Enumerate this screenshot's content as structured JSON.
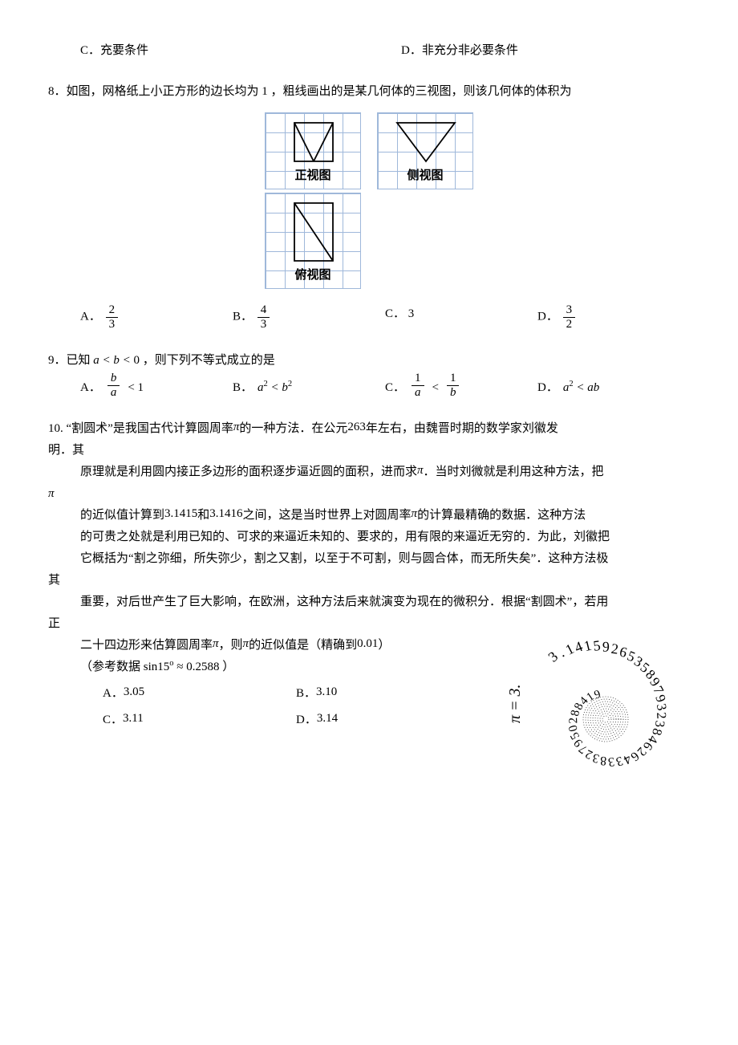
{
  "q7": {
    "options": {
      "c": {
        "label": "C．",
        "text": "充要条件"
      },
      "d": {
        "label": "D．",
        "text": "非充分非必要条件"
      }
    }
  },
  "q8": {
    "stem_prefix": "8．如图，网格纸上小正方形的边长均为",
    "stem_mid_num": "1",
    "stem_suffix": "，粗线画出的是某几何体的三视图，则该几何体的体积为",
    "views": {
      "front": "正视图",
      "side": "侧视图",
      "top": "俯视图"
    },
    "options": {
      "a": {
        "label": "A．",
        "num": "2",
        "den": "3"
      },
      "b": {
        "label": "B．",
        "num": "4",
        "den": "3"
      },
      "c": {
        "label": "C．",
        "text": "3"
      },
      "d": {
        "label": "D．",
        "num": "3",
        "den": "2"
      }
    },
    "grid": {
      "cell": 24,
      "line_color": "#9fb8da",
      "shape_color": "#000000"
    }
  },
  "q9": {
    "stem_prefix": "9．已知",
    "stem_math": "a < b < 0",
    "stem_suffix": "，则下列不等式成立的是",
    "options": {
      "a": {
        "label": "A．",
        "frac_num": "b",
        "frac_den": "a",
        "tail": "< 1"
      },
      "b": {
        "label": "B．",
        "math": "a² < b²"
      },
      "c": {
        "label": "C．",
        "left_num": "1",
        "left_den": "a",
        "mid": "<",
        "right_num": "1",
        "right_den": "b"
      },
      "d": {
        "label": "D．",
        "math": "a² < ab"
      }
    }
  },
  "q10": {
    "num": "10.",
    "line1_a": "“割圆术”是我国古代计算圆周率",
    "pi1": "π",
    "line1_b": "的一种方法．在公元",
    "year": "263",
    "line1_c": "年左右，由魏晋时期的数学家刘徽发",
    "line1_d": "明．其",
    "line2_a": "原理就是利用圆内接正多边形的面积逐步逼近圆的面积，进而求",
    "pi2": "π",
    "line2_b": "．当时刘微就是利用这种方法，把",
    "pi3": "π",
    "line3_a": "的近似值计算到",
    "v1": "3.1415",
    "line3_mid": "和",
    "v2": "3.1416",
    "line3_b": "之间，这是当时世界上对圆周率",
    "pi4": "π",
    "line3_c": "的计算最精确的数据．这种方法",
    "line4": "的可贵之处就是利用已知的、可求的来逼近未知的、要求的，用有限的来逼近无穷的．为此，刘徽把",
    "line5": "它概括为“割之弥细，所失弥少，割之又割，以至于不可割，则与圆合体，而无所失矣”．这种方法极",
    "line5_tail": "其",
    "line6": "重要，对后世产生了巨大影响，在欧洲，这种方法后来就演变为现在的微积分．根据“割圆术”，若用",
    "line6_tail": "正",
    "line7_a": "二十四边形来估算圆周率",
    "pi5": "π",
    "line7_b": "，则",
    "pi6": "π",
    "line7_c": "的近似值是（精确到",
    "prec": "0.01",
    "line7_d": "）",
    "ref_a": "（参考数据",
    "ref_math_left": "sin15°",
    "ref_math_mid": "≈",
    "ref_math_right": "0.2588",
    "ref_b": "）",
    "options": {
      "a": {
        "label": "A．",
        "text": "3.05"
      },
      "b": {
        "label": "B．",
        "text": "3.10"
      },
      "c": {
        "label": "C．",
        "text": "3.11"
      },
      "d": {
        "label": "D．",
        "text": "3.14"
      }
    },
    "pi_art": {
      "eq": "π = ",
      "digits_outer": "3.14159265358979323846264338327950288419716939937510582097494459230781640628620899862803482534211706798214808651328230664709384460955058223172535940812848111745028410270193852110555964462294895493",
      "center_fill": "#444444"
    }
  }
}
